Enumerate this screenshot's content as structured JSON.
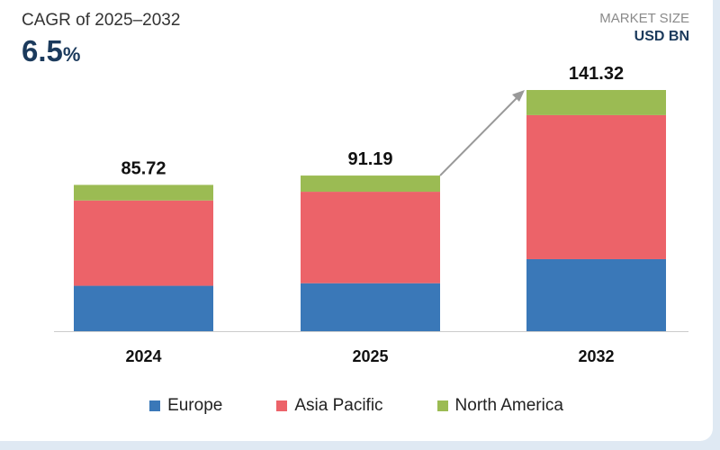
{
  "header": {
    "cagr_label": "CAGR of 2025–2032",
    "cagr_value": "6.5",
    "cagr_unit": "%",
    "market_size_label": "MARKET SIZE",
    "unit_label": "USD BN"
  },
  "chart_data": {
    "type": "bar",
    "stacked": true,
    "categories": [
      "2024",
      "2025",
      "2032"
    ],
    "totals": [
      "85.72",
      "91.19",
      "141.32"
    ],
    "series": [
      {
        "name": "Europe",
        "color": "#3a78b8",
        "values": [
          26.6,
          28.1,
          42.2
        ]
      },
      {
        "name": "Asia Pacific",
        "color": "#ec6369",
        "values": [
          50.0,
          53.6,
          84.4
        ]
      },
      {
        "name": "North America",
        "color": "#9bbb53",
        "values": [
          9.12,
          9.49,
          14.72
        ]
      }
    ],
    "ylim": [
      0,
      141.32
    ],
    "grid": false,
    "legend_position": "bottom",
    "annotation": "arrow from 2025 to 2032"
  }
}
